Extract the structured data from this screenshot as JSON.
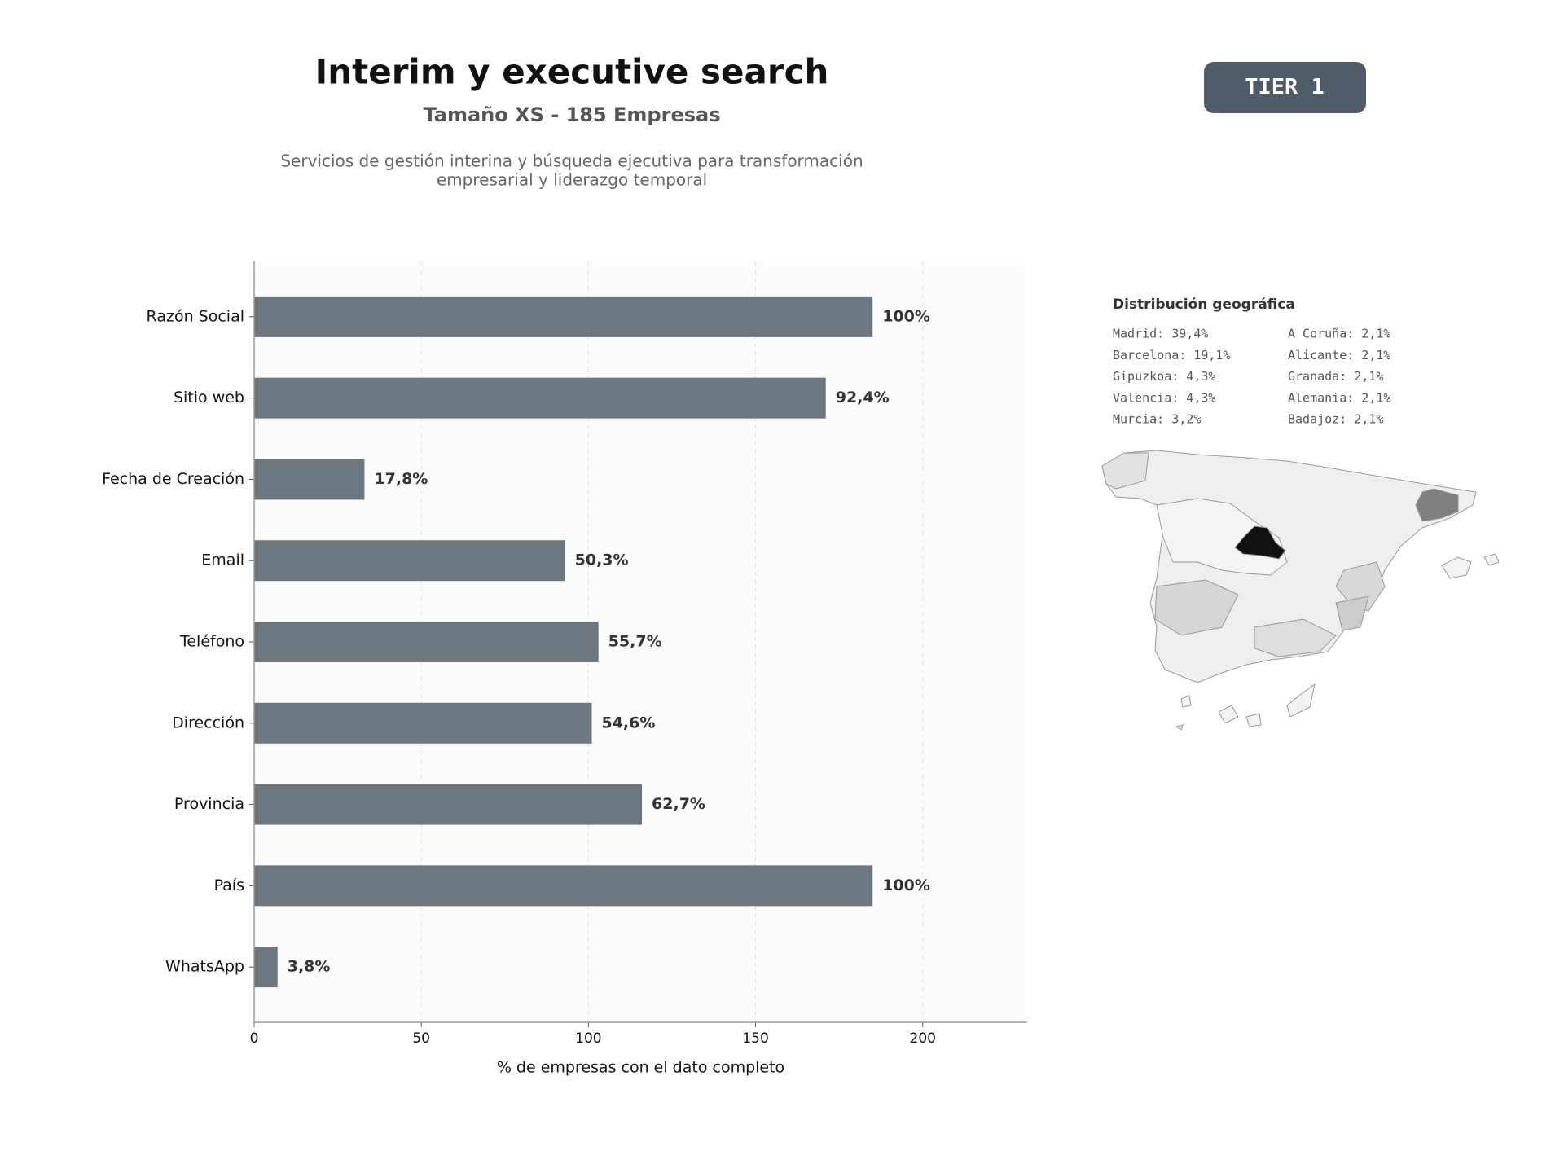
{
  "header": {
    "title": "Interim y executive search",
    "subtitle": "Tamaño XS - 185 Empresas",
    "description": [
      "Servicios de gestión interina y búsqueda ejecutiva para transformación",
      "empresarial y liderazgo temporal"
    ],
    "badge": "TIER 1"
  },
  "chart_data": {
    "type": "bar",
    "orientation": "horizontal",
    "categories": [
      "Razón Social",
      "Sitio web",
      "Fecha de Creación",
      "Email",
      "Teléfono",
      "Dirección",
      "Provincia",
      "País",
      "WhatsApp"
    ],
    "values": [
      185,
      171,
      33,
      93,
      103,
      101,
      116,
      185,
      7
    ],
    "value_labels": [
      "100%",
      "92,4%",
      "17,8%",
      "50,3%",
      "55,7%",
      "54,6%",
      "62,7%",
      "100%",
      "3,8%"
    ],
    "color": "#6c7780",
    "xlim": [
      0,
      231.25
    ],
    "xticks": [
      0,
      50,
      100,
      150,
      200
    ],
    "xlabel": "% de empresas con el dato completo",
    "grid": true
  },
  "geo": {
    "title": "Distribución geográfica",
    "items": [
      "Madrid: 39,4%",
      "Barcelona: 19,1%",
      "Gipuzkoa: 4,3%",
      "Valencia: 4,3%",
      "Murcia: 3,2%",
      "A Coruña: 2,1%",
      "Alicante: 2,1%",
      "Granada: 2,1%",
      "Alemania: 2,1%",
      "Badajoz: 2,1%"
    ]
  }
}
